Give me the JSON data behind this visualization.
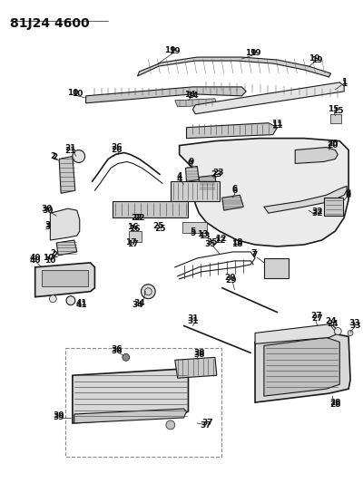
{
  "title": "81J24 4600",
  "background_color": "#ffffff",
  "fig_width": 4.0,
  "fig_height": 5.33,
  "dpi": 100,
  "line_color": "#1a1a1a",
  "label_color": "#111111",
  "label_fontsize": 6.5,
  "title_fontsize": 10
}
